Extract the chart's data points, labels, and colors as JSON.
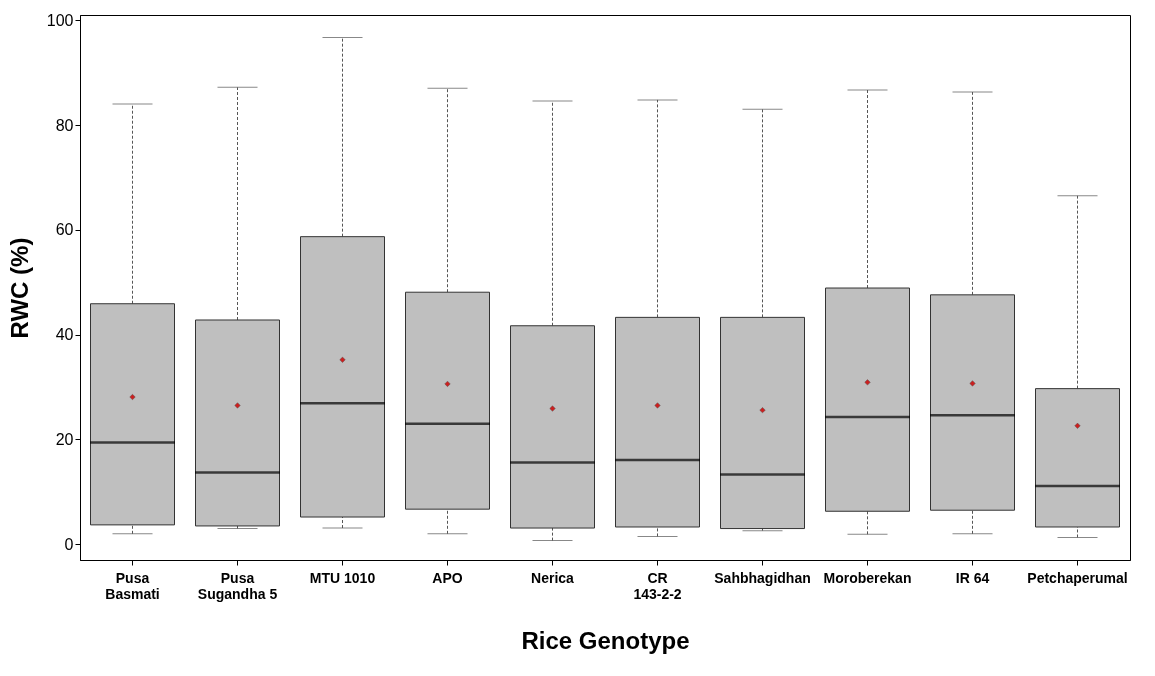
{
  "chart_data": {
    "type": "box",
    "xlabel": "Rice Genotype",
    "ylabel": "RWC (%)",
    "ylim": [
      -3,
      101
    ],
    "yticks": [
      0,
      20,
      40,
      60,
      80,
      100
    ],
    "grid": false,
    "marker": "diamond",
    "categories": [
      "Pusa Basmati",
      "Pusa Sugandha 5",
      "MTU 1010",
      "APO",
      "Nerica",
      "CR 143-2-2",
      "Sahbhagidhan",
      "Moroberekan",
      "IR 64",
      "Petchaperumal"
    ],
    "series": [
      {
        "color": "#bfbfbf",
        "boxes": [
          {
            "low": 2.0,
            "q1": 3.7,
            "median": 19.4,
            "q3": 45.9,
            "high": 84.0,
            "mean": 28.1
          },
          {
            "low": 3.0,
            "q1": 3.5,
            "median": 13.7,
            "q3": 42.8,
            "high": 87.2,
            "mean": 26.5
          },
          {
            "low": 3.1,
            "q1": 5.2,
            "median": 26.9,
            "q3": 58.7,
            "high": 96.7,
            "mean": 35.2
          },
          {
            "low": 2.0,
            "q1": 6.7,
            "median": 23.0,
            "q3": 48.1,
            "high": 87.0,
            "mean": 30.6
          },
          {
            "low": 0.7,
            "q1": 3.1,
            "median": 15.6,
            "q3": 41.7,
            "high": 84.6,
            "mean": 25.9
          },
          {
            "low": 1.5,
            "q1": 3.3,
            "median": 16.1,
            "q3": 43.3,
            "high": 84.8,
            "mean": 26.5
          },
          {
            "low": 2.6,
            "q1": 3.0,
            "median": 13.3,
            "q3": 43.3,
            "high": 83.0,
            "mean": 25.6
          },
          {
            "low": 1.9,
            "q1": 6.3,
            "median": 24.3,
            "q3": 48.9,
            "high": 86.7,
            "mean": 30.9
          },
          {
            "low": 2.0,
            "q1": 6.5,
            "median": 24.6,
            "q3": 47.6,
            "high": 86.3,
            "mean": 30.7
          },
          {
            "low": 1.3,
            "q1": 3.3,
            "median": 11.1,
            "q3": 29.7,
            "high": 66.5,
            "mean": 22.6
          }
        ]
      }
    ]
  }
}
